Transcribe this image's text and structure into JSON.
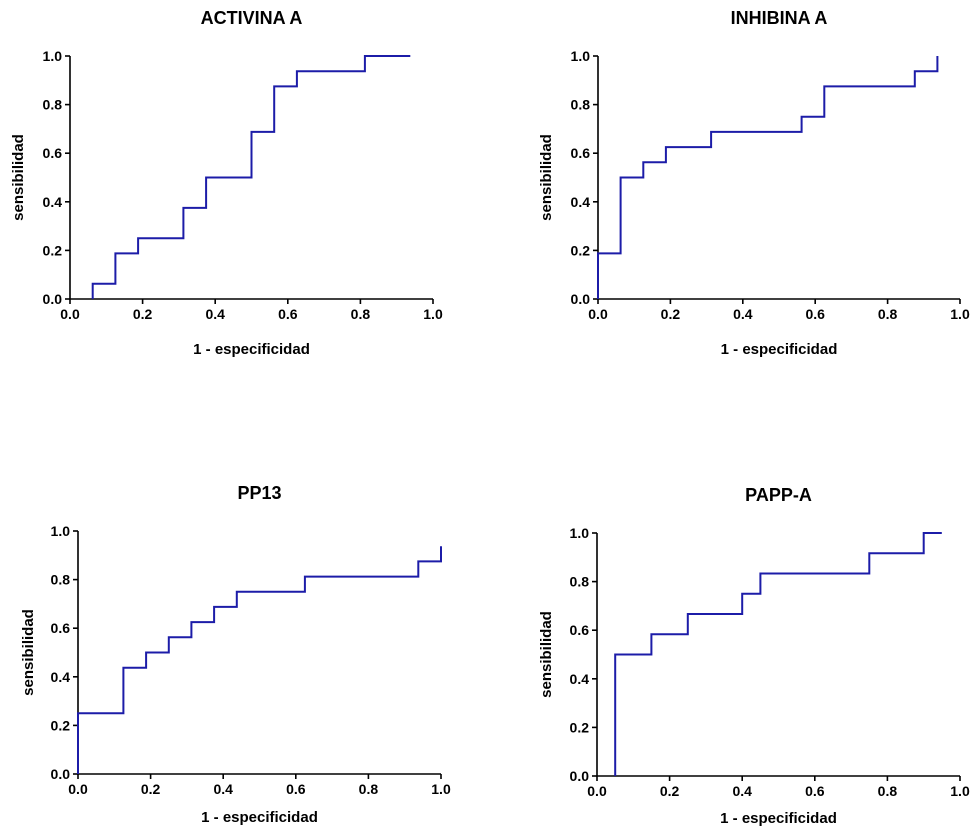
{
  "chart_data": [
    {
      "type": "line",
      "title": "ACTIVINA A",
      "xlabel": "1 - especificidad",
      "ylabel": "sensibilidad",
      "xlim": [
        0,
        1
      ],
      "ylim": [
        0,
        1
      ],
      "xticks": [
        "0.0",
        "0.2",
        "0.4",
        "0.6",
        "0.8",
        "1.0"
      ],
      "yticks": [
        "0.0",
        "0.2",
        "0.4",
        "0.6",
        "0.8",
        "1.0"
      ],
      "series": [
        {
          "color": "#1c1ca8",
          "x": [
            0.0625,
            0.0625,
            0.125,
            0.125,
            0.1875,
            0.1875,
            0.3125,
            0.3125,
            0.375,
            0.375,
            0.5,
            0.5,
            0.5625,
            0.5625,
            0.625,
            0.625,
            0.8125,
            0.8125,
            0.9375
          ],
          "y": [
            0.0,
            0.0625,
            0.0625,
            0.1875,
            0.1875,
            0.25,
            0.25,
            0.375,
            0.375,
            0.5,
            0.5,
            0.6875,
            0.6875,
            0.875,
            0.875,
            0.9375,
            0.9375,
            1.0,
            1.0
          ]
        }
      ]
    },
    {
      "type": "line",
      "title": "INHIBINA  A",
      "xlabel": "1 - especificidad",
      "ylabel": "sensibilidad",
      "xlim": [
        0,
        1
      ],
      "ylim": [
        0,
        1
      ],
      "xticks": [
        "0.0",
        "0.2",
        "0.4",
        "0.6",
        "0.8",
        "1.0"
      ],
      "yticks": [
        "0.0",
        "0.2",
        "0.4",
        "0.6",
        "0.8",
        "1.0"
      ],
      "series": [
        {
          "color": "#1c1ca8",
          "x": [
            0.0,
            0.0,
            0.0625,
            0.0625,
            0.125,
            0.125,
            0.1875,
            0.1875,
            0.3125,
            0.3125,
            0.5625,
            0.5625,
            0.625,
            0.625,
            0.875,
            0.875,
            0.9375,
            0.9375
          ],
          "y": [
            0.0,
            0.1875,
            0.1875,
            0.5,
            0.5,
            0.5625,
            0.5625,
            0.625,
            0.625,
            0.6875,
            0.6875,
            0.75,
            0.75,
            0.875,
            0.875,
            0.9375,
            0.9375,
            1.0
          ]
        }
      ]
    },
    {
      "type": "line",
      "title": "PP13",
      "xlabel": "1 - especificidad",
      "ylabel": "sensibilidad",
      "xlim": [
        0,
        1
      ],
      "ylim": [
        0,
        1
      ],
      "xticks": [
        "0.0",
        "0.2",
        "0.4",
        "0.6",
        "0.8",
        "1.0"
      ],
      "yticks": [
        "0.0",
        "0.2",
        "0.4",
        "0.6",
        "0.8",
        "1.0"
      ],
      "series": [
        {
          "color": "#1c1ca8",
          "x": [
            0.0,
            0.0,
            0.125,
            0.125,
            0.1875,
            0.1875,
            0.25,
            0.25,
            0.3125,
            0.3125,
            0.375,
            0.375,
            0.4375,
            0.4375,
            0.625,
            0.625,
            0.9375,
            0.9375,
            1.0,
            1.0
          ],
          "y": [
            0.0,
            0.25,
            0.25,
            0.4375,
            0.4375,
            0.5,
            0.5,
            0.5625,
            0.5625,
            0.625,
            0.625,
            0.6875,
            0.6875,
            0.75,
            0.75,
            0.8125,
            0.8125,
            0.875,
            0.875,
            0.9375
          ]
        }
      ]
    },
    {
      "type": "line",
      "title": "PAPP-A",
      "xlabel": "1 - especificidad",
      "ylabel": "sensibilidad",
      "xlim": [
        0,
        1
      ],
      "ylim": [
        0,
        1
      ],
      "xticks": [
        "0.0",
        "0.2",
        "0.4",
        "0.6",
        "0.8",
        "1.0"
      ],
      "yticks": [
        "0.0",
        "0.2",
        "0.4",
        "0.6",
        "0.8",
        "1.0"
      ],
      "series": [
        {
          "color": "#1c1ca8",
          "x": [
            0.05,
            0.05,
            0.15,
            0.15,
            0.25,
            0.25,
            0.4,
            0.4,
            0.45,
            0.45,
            0.75,
            0.75,
            0.9,
            0.9,
            0.95
          ],
          "y": [
            0.0,
            0.5,
            0.5,
            0.5833,
            0.5833,
            0.6667,
            0.6667,
            0.75,
            0.75,
            0.8333,
            0.8333,
            0.9167,
            0.9167,
            1.0,
            1.0
          ]
        }
      ]
    }
  ]
}
